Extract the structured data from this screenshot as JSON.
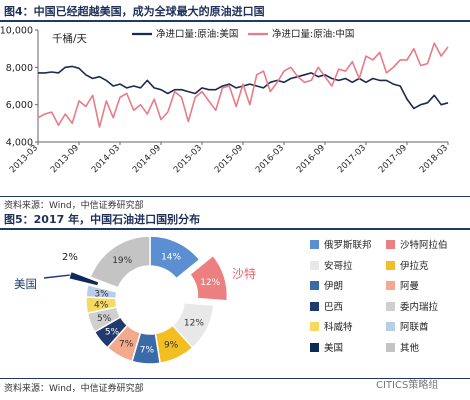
{
  "figure4": {
    "title": "图4：中国已经超越美国，成为全球最大的原油进口国",
    "source": "资料来源：Wind，中信证券研究部"
  },
  "figure5": {
    "title": "图5：2017 年，中国石油进口国别分布",
    "source": "资料来源：Wind，中信证券研究部"
  },
  "watermark": "CITICS策略组",
  "colors": {
    "navy": "#1f3a66",
    "china_line": "#e87b86",
    "us_line": "#1b2a4e"
  },
  "chart_data": [
    {
      "type": "line",
      "ylabel": "千桶/天",
      "ylim": [
        4000,
        10000
      ],
      "yticks": [
        "4,000",
        "6,000",
        "8,000",
        "10,000"
      ],
      "xticks": [
        "2013-03",
        "2013-09",
        "2014-03",
        "2014-09",
        "2015-03",
        "2015-09",
        "2016-03",
        "2016-09",
        "2017-03",
        "2017-09",
        "2018-03"
      ],
      "x": [
        "2013-03",
        "2013-04",
        "2013-05",
        "2013-06",
        "2013-07",
        "2013-08",
        "2013-09",
        "2013-10",
        "2013-11",
        "2013-12",
        "2014-01",
        "2014-02",
        "2014-03",
        "2014-04",
        "2014-05",
        "2014-06",
        "2014-07",
        "2014-08",
        "2014-09",
        "2014-10",
        "2014-11",
        "2014-12",
        "2015-01",
        "2015-02",
        "2015-03",
        "2015-04",
        "2015-05",
        "2015-06",
        "2015-07",
        "2015-08",
        "2015-09",
        "2015-10",
        "2015-11",
        "2015-12",
        "2016-01",
        "2016-02",
        "2016-03",
        "2016-04",
        "2016-05",
        "2016-06",
        "2016-07",
        "2016-08",
        "2016-09",
        "2016-10",
        "2016-11",
        "2016-12",
        "2017-01",
        "2017-02",
        "2017-03",
        "2017-04",
        "2017-05",
        "2017-06",
        "2017-07",
        "2017-08",
        "2017-09",
        "2017-10",
        "2017-11",
        "2017-12",
        "2018-01",
        "2018-02",
        "2018-03"
      ],
      "series": [
        {
          "name": "净进口量:原油:美国",
          "values": [
            7700,
            7700,
            7750,
            7700,
            8000,
            8050,
            7950,
            7600,
            7400,
            7500,
            7300,
            7000,
            7100,
            6900,
            7000,
            6900,
            7300,
            6900,
            6800,
            6600,
            6800,
            6800,
            6700,
            6600,
            6900,
            6800,
            6800,
            7000,
            7100,
            6900,
            7000,
            7100,
            7000,
            6900,
            7200,
            7300,
            7200,
            7400,
            7500,
            7600,
            7700,
            7500,
            7600,
            7400,
            7300,
            7400,
            7200,
            7400,
            7200,
            7400,
            7300,
            7300,
            7100,
            7000,
            6300,
            5800,
            6000,
            6100,
            6500,
            6000,
            6100
          ]
        },
        {
          "name": "净进口量:原油:中国",
          "values": [
            5300,
            5500,
            5600,
            4900,
            5500,
            5000,
            6200,
            5900,
            6500,
            4800,
            6200,
            5300,
            6400,
            6600,
            5700,
            6000,
            5500,
            6300,
            5200,
            5600,
            6700,
            6400,
            5100,
            6400,
            6700,
            6200,
            5700,
            6900,
            7000,
            5900,
            7100,
            6000,
            7600,
            7800,
            6700,
            7200,
            7800,
            8000,
            7500,
            7200,
            7300,
            8000,
            7500,
            7000,
            7900,
            7800,
            8300,
            7400,
            8600,
            8400,
            8800,
            7700,
            8000,
            8400,
            8400,
            9000,
            8100,
            8200,
            9300,
            8600,
            9100
          ]
        }
      ]
    },
    {
      "type": "pie",
      "donut": true,
      "slices": [
        {
          "label": "俄罗斯联邦",
          "value": 14,
          "text": "14%",
          "color": "#5b8fd1"
        },
        {
          "label": "沙特阿拉伯",
          "value": 12,
          "text": "12%",
          "color": "#ec7f7f"
        },
        {
          "label": "安哥拉",
          "value": 12,
          "text": "12%",
          "color": "#e8e8e8"
        },
        {
          "label": "伊拉克",
          "value": 9,
          "text": "9%",
          "color": "#f2be22"
        },
        {
          "label": "伊朗",
          "value": 7,
          "text": "7%",
          "color": "#3b6aa8"
        },
        {
          "label": "阿曼",
          "value": 7,
          "text": "7%",
          "color": "#f3a98b"
        },
        {
          "label": "巴西",
          "value": 5,
          "text": "5%",
          "color": "#1f3a6b"
        },
        {
          "label": "委内瑞拉",
          "value": 5,
          "text": "5%",
          "color": "#cfcfcf"
        },
        {
          "label": "科威特",
          "value": 4,
          "text": "4%",
          "color": "#f5d960"
        },
        {
          "label": "阿联酋",
          "value": 3,
          "text": "3%",
          "color": "#b7cde8"
        },
        {
          "label": "美国",
          "value": 2,
          "text": "2%",
          "color": "#0e2a5a"
        },
        {
          "label": "其他",
          "value": 19,
          "text": "19%",
          "color": "#c4c4c4"
        }
      ],
      "callouts": {
        "saudi": "沙特",
        "us": "美国"
      }
    }
  ]
}
